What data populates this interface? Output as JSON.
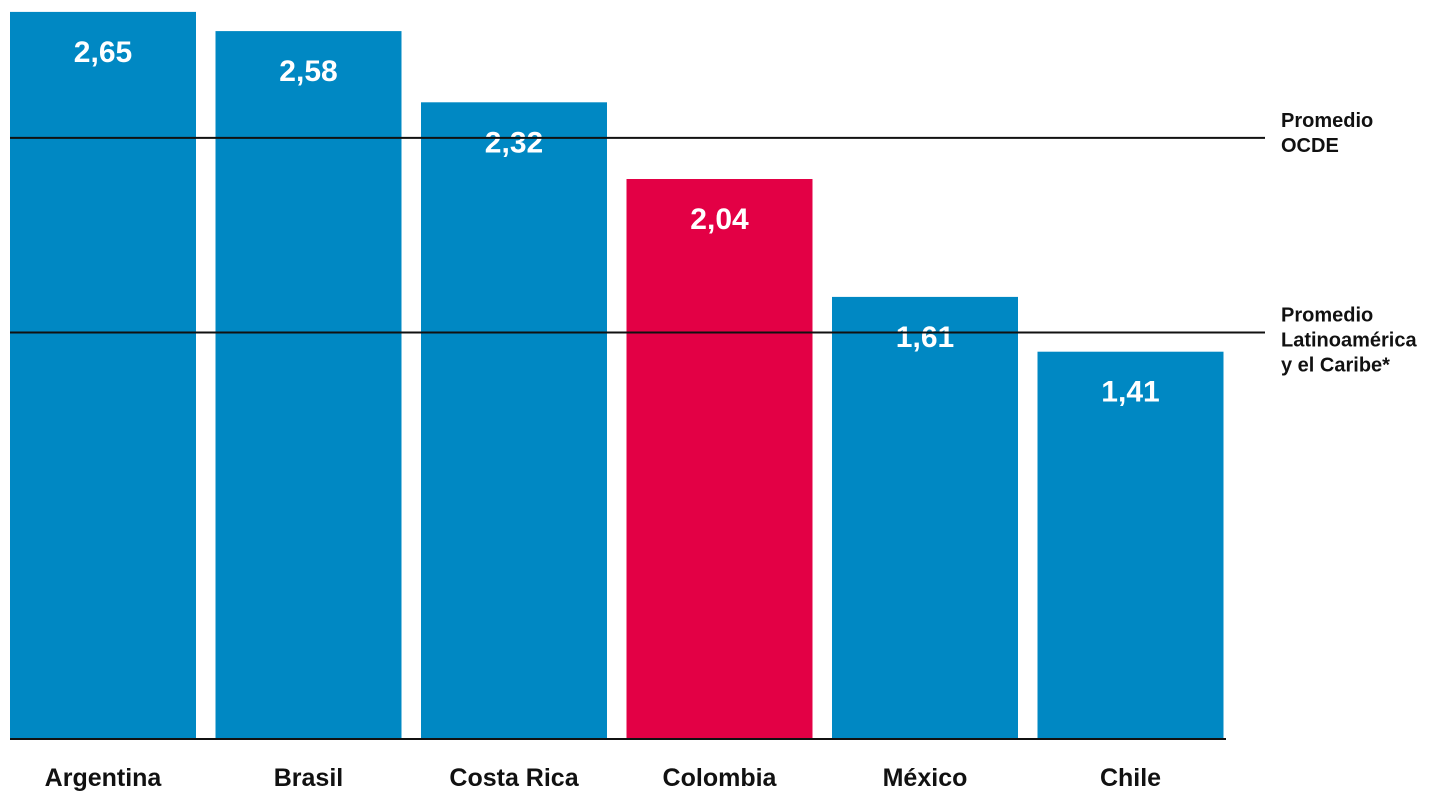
{
  "chart_data": {
    "type": "bar",
    "categories": [
      "Argentina",
      "Brasil",
      "Costa Rica",
      "Colombia",
      "México",
      "Chile"
    ],
    "values": [
      2.65,
      2.58,
      2.32,
      2.04,
      1.61,
      1.41
    ],
    "value_labels": [
      "2,65",
      "2,58",
      "2,32",
      "2,04",
      "1,61",
      "1,41"
    ],
    "highlight_category": "Colombia",
    "ylim": [
      0,
      2.7
    ],
    "grid": false,
    "reference_lines": [
      {
        "value": 2.19,
        "label_lines": [
          "Promedio",
          "OCDE"
        ]
      },
      {
        "value": 1.48,
        "label_lines": [
          "Promedio",
          "Latinoamérica",
          "y el Caribe*"
        ]
      }
    ]
  },
  "colors": {
    "bar": "#0088C3",
    "highlight": "#E30045",
    "text": "#111111",
    "value_text": "#FFFFFF"
  }
}
